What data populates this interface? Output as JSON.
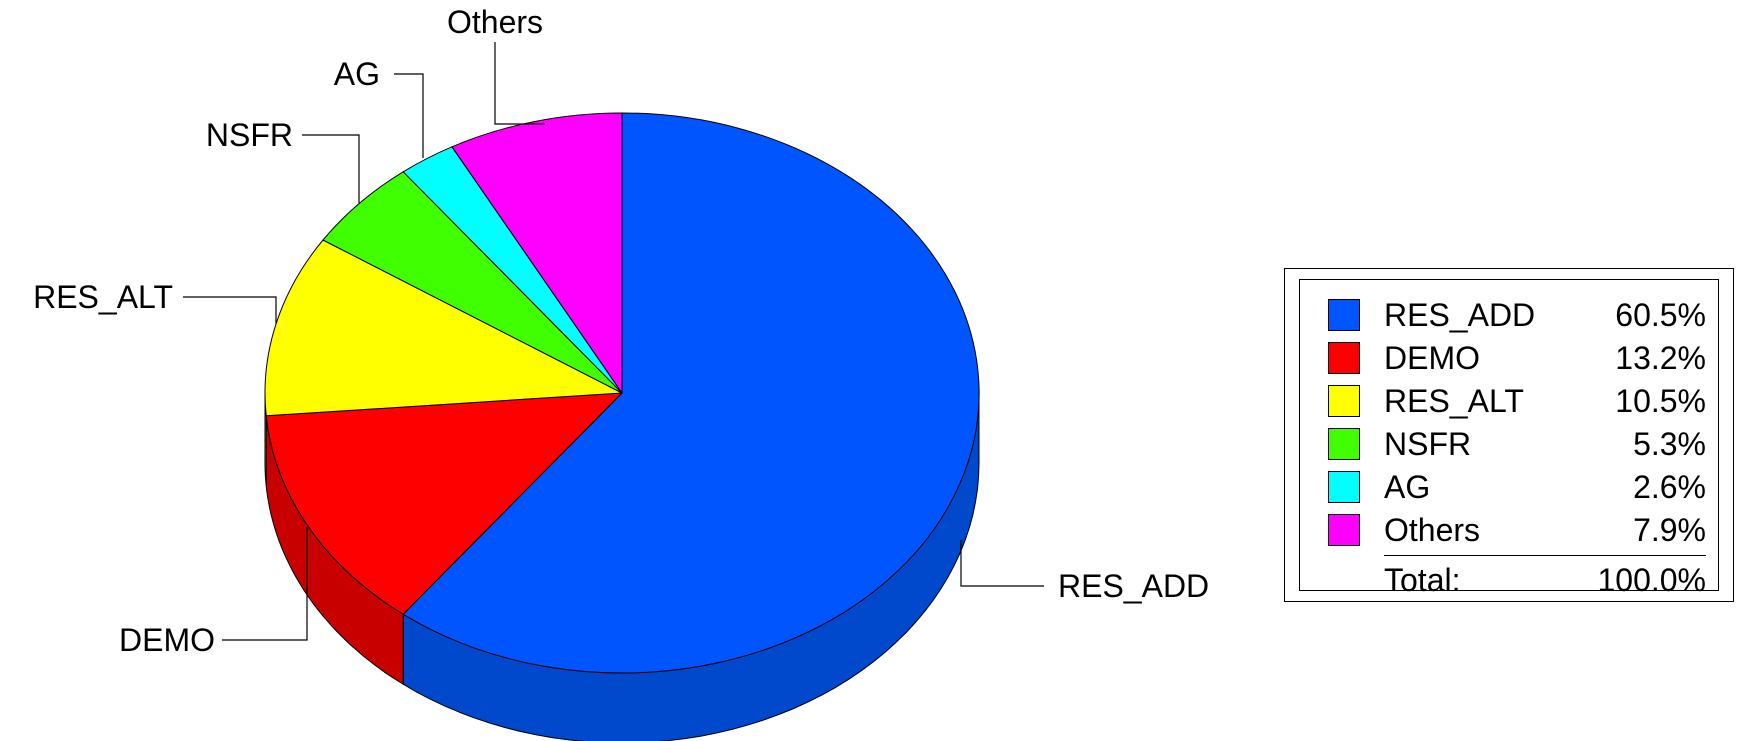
{
  "chart_data": {
    "type": "pie",
    "style": "3d",
    "title": "",
    "slices": [
      {
        "label": "RES_ADD",
        "value": 60.5,
        "percent_label": "60.5%",
        "color": "#0055FF",
        "side_color": "#0048CC"
      },
      {
        "label": "DEMO",
        "value": 13.2,
        "percent_label": "13.2%",
        "color": "#FF0000",
        "side_color": "#C80000"
      },
      {
        "label": "RES_ALT",
        "value": 10.5,
        "percent_label": "10.5%",
        "color": "#FFFF00",
        "side_color": "#C8C800"
      },
      {
        "label": "NSFR",
        "value": 5.3,
        "percent_label": "5.3%",
        "color": "#40FF00",
        "side_color": "#30C000"
      },
      {
        "label": "AG",
        "value": 2.6,
        "percent_label": "2.6%",
        "color": "#00FFFF",
        "side_color": "#00C8C8"
      },
      {
        "label": "Others",
        "value": 7.9,
        "percent_label": "7.9%",
        "color": "#FF00FF",
        "side_color": "#C800C8"
      }
    ],
    "legend": {
      "placement": "right",
      "total_label": "Total:",
      "total_value": "100.0%"
    }
  }
}
